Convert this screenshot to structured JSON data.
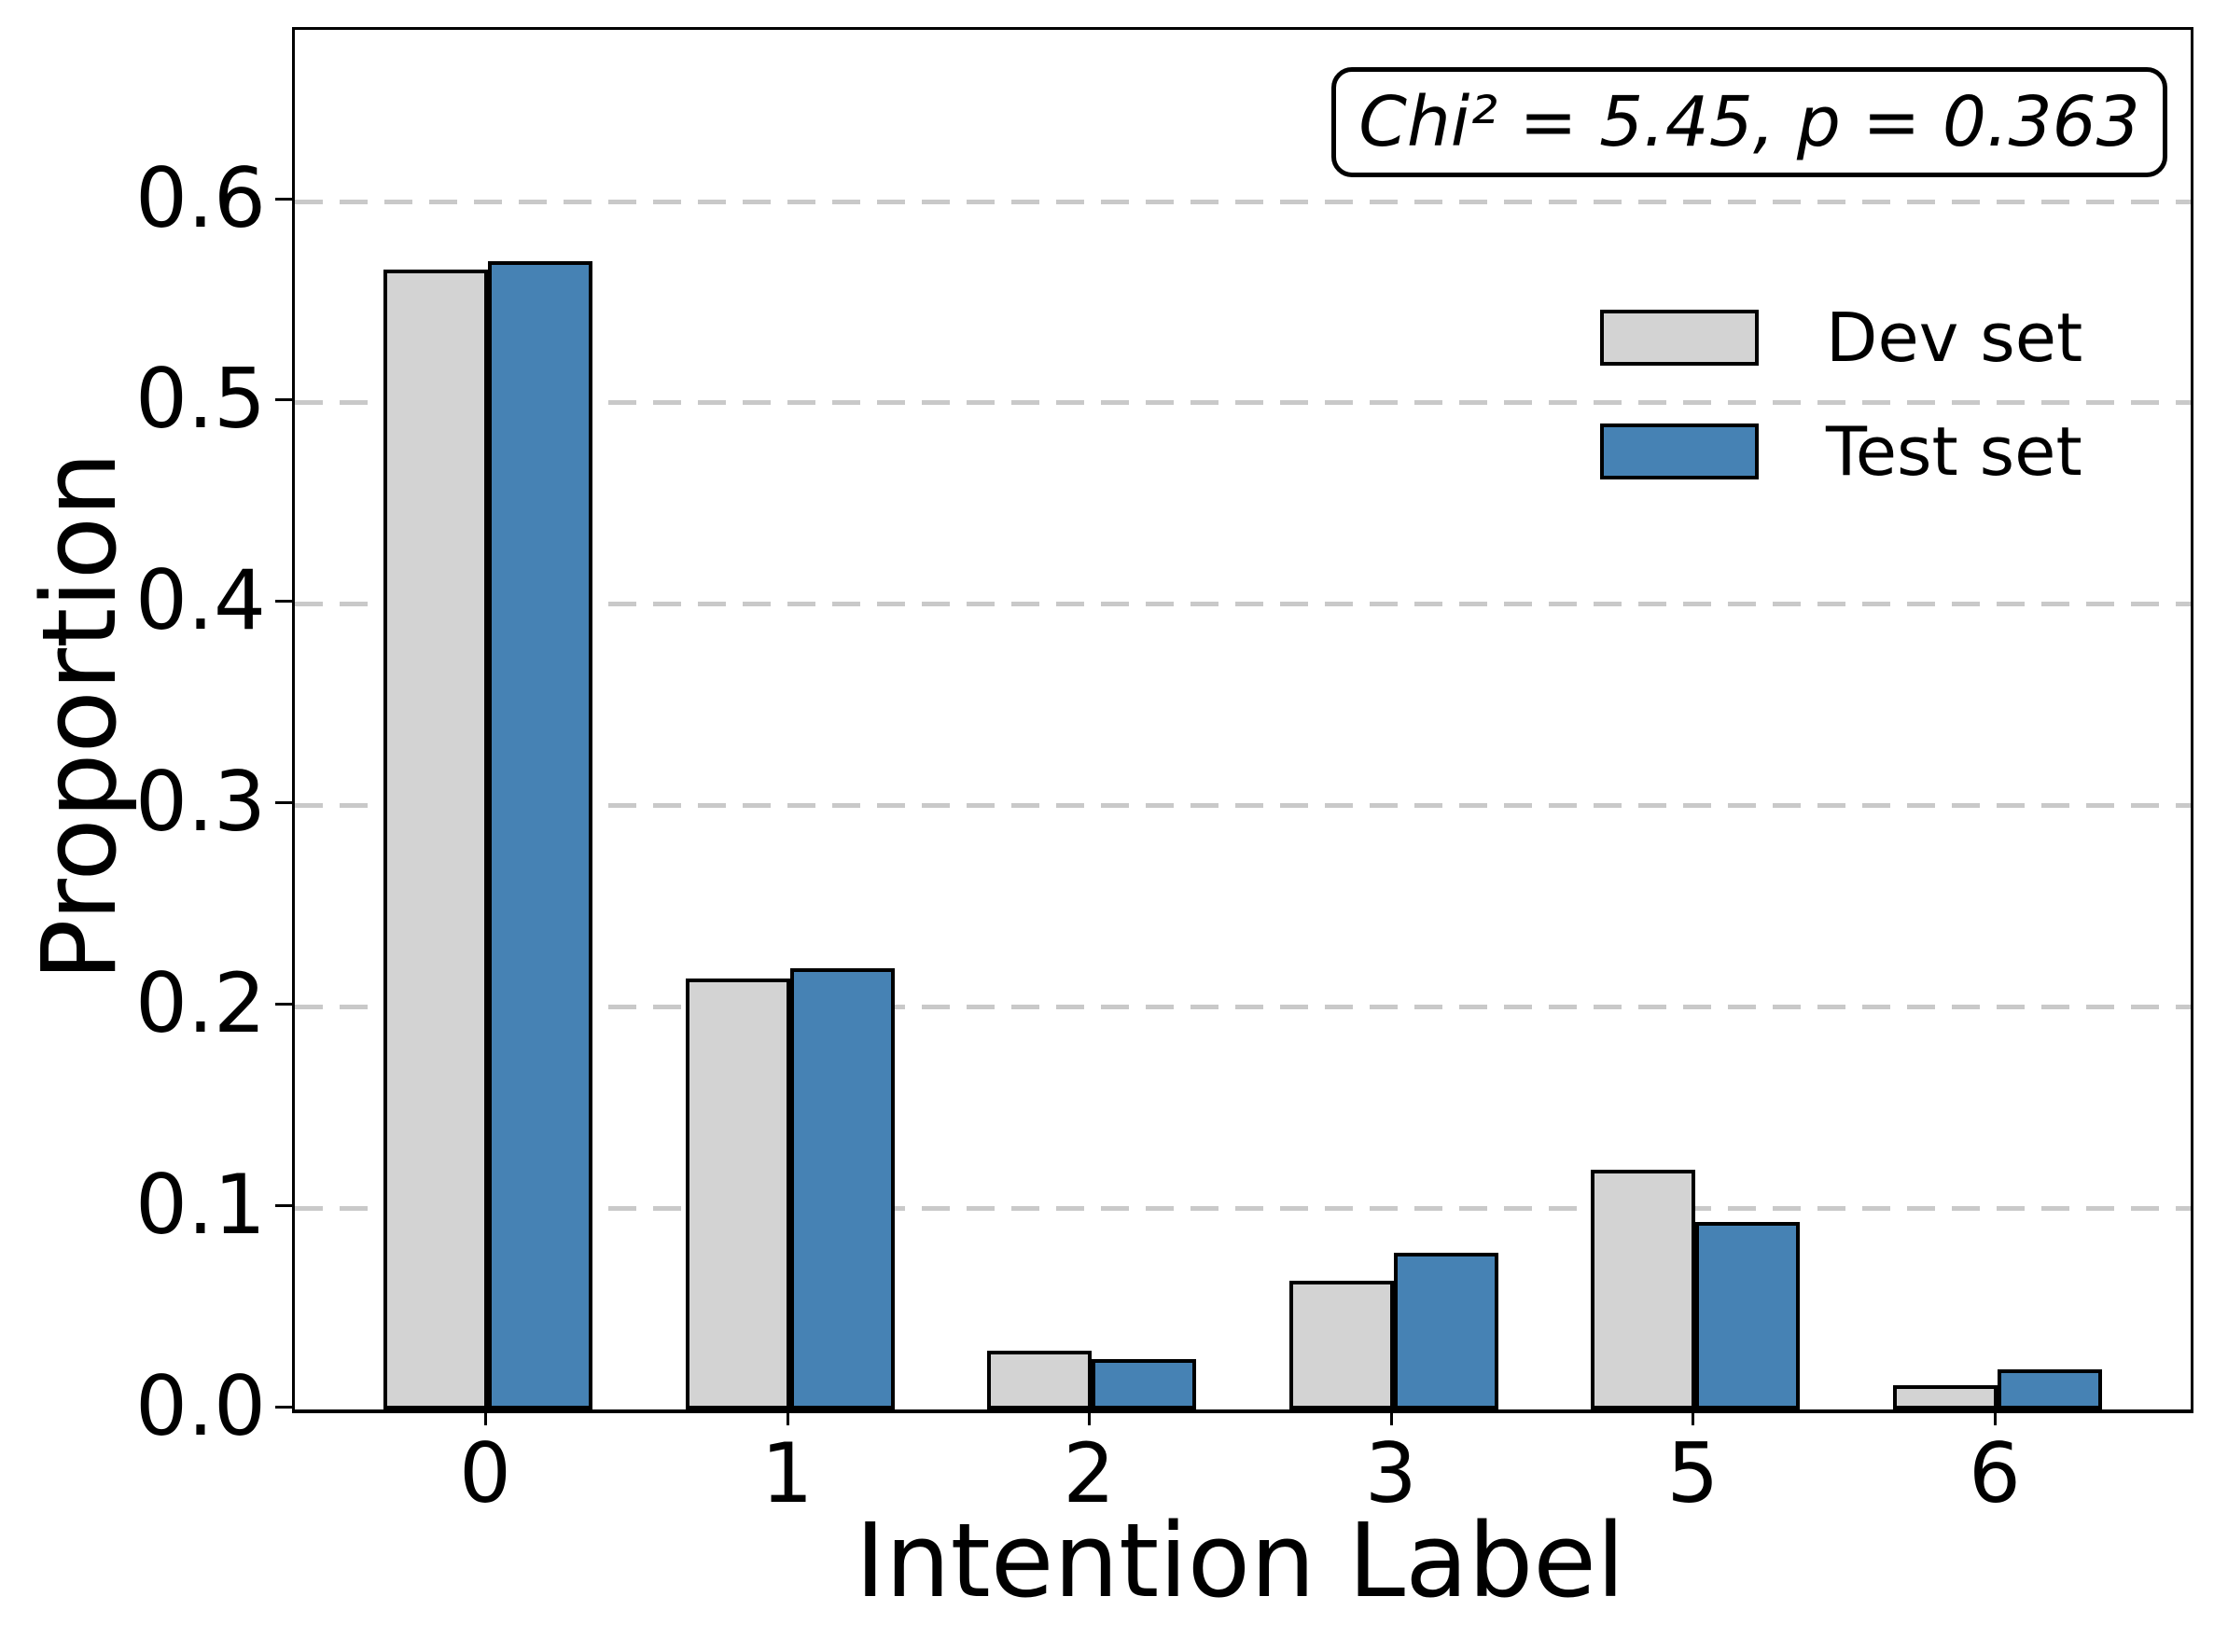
{
  "chart_data": {
    "type": "bar",
    "title": "",
    "xlabel": "Intention Label",
    "ylabel": "Proportion",
    "categories": [
      "0",
      "1",
      "2",
      "3",
      "5",
      "6"
    ],
    "series": [
      {
        "name": "Dev set",
        "color": "#d3d3d3",
        "values": [
          0.566,
          0.214,
          0.029,
          0.064,
          0.119,
          0.012
        ]
      },
      {
        "name": "Test set",
        "color": "#4682b4",
        "values": [
          0.57,
          0.219,
          0.025,
          0.078,
          0.093,
          0.02
        ]
      }
    ],
    "yticks": [
      0.0,
      0.1,
      0.2,
      0.3,
      0.4,
      0.5,
      0.6
    ],
    "ylim": [
      0,
      0.685
    ],
    "grid": "horizontal-dashed",
    "grid_color": "#c9c9c9",
    "bar_edge_color": "#000000",
    "legend_position": "upper-right",
    "annotation": "Chi² = 5.45, p = 0.363"
  }
}
